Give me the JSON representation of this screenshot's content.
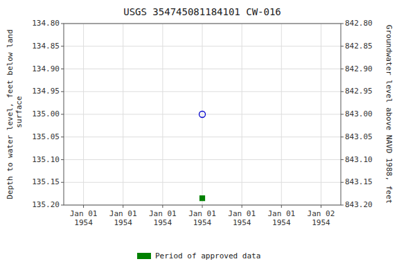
{
  "chart_data": {
    "type": "scatter",
    "title": "USGS 354745081184101 CW-016",
    "y_label": "Depth to water level, feet below land\n surface",
    "y2_label": "Groundwater level above NAVD 1988, feet",
    "categories": [
      "Jan 01\n1954",
      "Jan 01\n1954",
      "Jan 01\n1954",
      "Jan 01\n1954",
      "Jan 01\n1954",
      "Jan 01\n1954",
      "Jan 02\n1954"
    ],
    "series": [
      {
        "color": "#0000cc",
        "marker": "open-circle",
        "line_style": "none",
        "values": [
          null,
          null,
          null,
          135.0,
          null,
          null,
          null
        ]
      },
      {
        "name": "Period of approved data",
        "color": "#008000",
        "marker": "square",
        "line_style": "none",
        "values": [
          null,
          null,
          null,
          135.185,
          null,
          null,
          null
        ]
      }
    ],
    "ylim": [
      135.2,
      134.8
    ],
    "yticks": [
      {
        "value": 134.8,
        "label": "134.80"
      },
      134.85,
      {
        "value": 134.9,
        "label": "134.90"
      },
      134.95,
      {
        "value": 135.0,
        "label": "135.00"
      },
      135.05,
      {
        "value": 135.1,
        "label": "135.10"
      },
      135.15,
      {
        "value": 135.2,
        "label": "135.20"
      }
    ],
    "y2lim": [
      843.2,
      842.8
    ],
    "y2ticks": [
      {
        "value": 843.2,
        "label": "843.20"
      },
      843.15,
      {
        "value": 843.1,
        "label": "843.10"
      },
      843.05,
      {
        "value": 843.0,
        "label": "843.00"
      },
      842.95,
      {
        "value": 842.9,
        "label": "842.90"
      },
      842.85,
      {
        "value": 842.8,
        "label": "842.80"
      }
    ],
    "grid": true,
    "legend": "bottom"
  }
}
